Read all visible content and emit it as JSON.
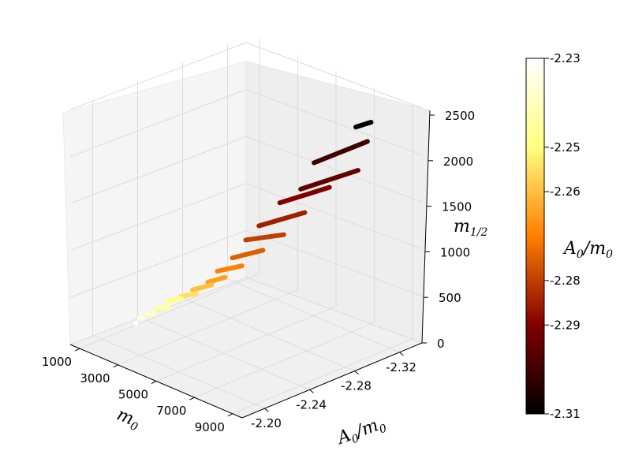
{
  "chart_data": {
    "type": "scatter",
    "projection": "3d",
    "axes": {
      "x": {
        "label": "m",
        "label_sub": "0",
        "ticks": [
          "9000",
          "7000",
          "5000",
          "3000",
          "1000"
        ],
        "tick_values": [
          9000,
          7000,
          5000,
          3000,
          1000
        ],
        "range": [
          500,
          9500
        ]
      },
      "y": {
        "label": "A",
        "label_sub": "0",
        "label_tail": "/m",
        "label_tail_sub": "0",
        "ticks": [
          "-2.20",
          "-2.24",
          "-2.28",
          "-2.32"
        ],
        "tick_values": [
          -2.2,
          -2.24,
          -2.28,
          -2.32
        ],
        "range": [
          -2.18,
          -2.34
        ]
      },
      "z": {
        "label": "m",
        "label_sub": "1/2",
        "ticks": [
          "0",
          "500",
          "1000",
          "1500",
          "2000",
          "2500"
        ],
        "tick_values": [
          0,
          500,
          1000,
          1500,
          2000,
          2500
        ],
        "range": [
          0,
          2500
        ]
      }
    },
    "colorbar": {
      "label": "A",
      "label_sub": "0",
      "label_tail": "/m",
      "label_tail_sub": "0",
      "colormap": "afmhot",
      "range": [
        -2.31,
        -2.23
      ],
      "ticks": [
        "-2.23",
        "-2.25",
        "-2.26",
        "-2.28",
        "-2.29",
        "-2.31"
      ],
      "tick_values": [
        -2.23,
        -2.25,
        -2.26,
        -2.28,
        -2.29,
        -2.31
      ]
    },
    "grid": true,
    "series": [
      {
        "a0m0": -2.31,
        "m0": [
          8600,
          7800
        ],
        "m12": [
          2420,
          2300
        ]
      },
      {
        "a0m0": -2.3,
        "m0": [
          9000,
          6200
        ],
        "m12": [
          2300,
          1830
        ]
      },
      {
        "a0m0": -2.295,
        "m0": [
          8800,
          5800
        ],
        "m12": [
          2000,
          1540
        ]
      },
      {
        "a0m0": -2.29,
        "m0": [
          7600,
          5000
        ],
        "m12": [
          1740,
          1350
        ]
      },
      {
        "a0m0": -2.285,
        "m0": [
          6600,
          4200
        ],
        "m12": [
          1410,
          1060
        ]
      },
      {
        "a0m0": -2.28,
        "m0": [
          5800,
          3800
        ],
        "m12": [
          1130,
          900
        ]
      },
      {
        "a0m0": -2.275,
        "m0": [
          5000,
          3400
        ],
        "m12": [
          920,
          700
        ]
      },
      {
        "a0m0": -2.27,
        "m0": [
          4200,
          2900
        ],
        "m12": [
          710,
          540
        ]
      },
      {
        "a0m0": -2.265,
        "m0": [
          3600,
          2700
        ],
        "m12": [
          560,
          430
        ]
      },
      {
        "a0m0": -2.26,
        "m0": [
          3200,
          2200
        ],
        "m12": [
          470,
          330
        ]
      },
      {
        "a0m0": -2.255,
        "m0": [
          2700,
          1900
        ],
        "m12": [
          360,
          260
        ]
      },
      {
        "a0m0": -2.25,
        "m0": [
          2200,
          1500
        ],
        "m12": [
          290,
          200
        ]
      },
      {
        "a0m0": -2.245,
        "m0": [
          1800,
          1200
        ],
        "m12": [
          190,
          120
        ]
      },
      {
        "a0m0": -2.24,
        "m0": [
          1400,
          1000
        ],
        "m12": [
          110,
          70
        ]
      },
      {
        "a0m0": -2.235,
        "m0": [
          1100,
          900
        ],
        "m12": [
          60,
          40
        ]
      },
      {
        "a0m0": -2.23,
        "m0": [
          1000,
          1000
        ],
        "m12": [
          20,
          20
        ]
      }
    ]
  }
}
